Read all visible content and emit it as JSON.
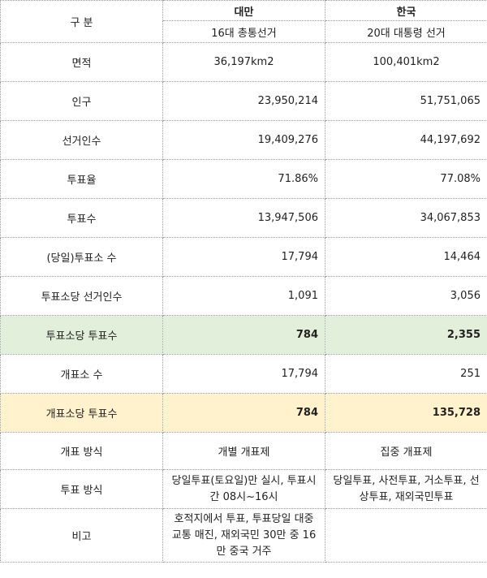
{
  "header": {
    "label": "구 분",
    "col1": {
      "country": "대만",
      "election": "16대 총통선거"
    },
    "col2": {
      "country": "한국",
      "election": "20대 대통령 선거"
    }
  },
  "rows": [
    {
      "label": "면적",
      "taiwan": "36,197km2",
      "korea": "100,401km2"
    },
    {
      "label": "인구",
      "taiwan": "23,950,214",
      "korea": "51,751,065"
    },
    {
      "label": "선거인수",
      "taiwan": "19,409,276",
      "korea": "44,197,692"
    },
    {
      "label": "투표율",
      "taiwan": "71.86%",
      "korea": "77.08%"
    },
    {
      "label": "투표수",
      "taiwan": "13,947,506",
      "korea": "34,067,853"
    },
    {
      "label": "(당일)투표소 수",
      "taiwan": "17,794",
      "korea": "14,464"
    },
    {
      "label": "투표소당 선거인수",
      "taiwan": "1,091",
      "korea": "3,056"
    },
    {
      "label": "투표소당 투표수",
      "taiwan": "784",
      "korea": "2,355"
    },
    {
      "label": "개표소 수",
      "taiwan": "17,794",
      "korea": "251"
    },
    {
      "label": "개표소당 투표수",
      "taiwan": "784",
      "korea": "135,728"
    },
    {
      "label": "개표 방식",
      "taiwan": "개별 개표제",
      "korea": "집중 개표제"
    },
    {
      "label": "투표 방식",
      "taiwan": "당일투표(토요일)만 실시, 투표시간 08시~16시",
      "korea": "당일투표, 사전투표, 거소투표, 선상투표, 재외국민투표"
    },
    {
      "label": "비고",
      "taiwan": "호적지에서 투표, 투표당일 대중교통 매진, 재외국민 30만 중 16만 중국 거주",
      "korea": ""
    }
  ],
  "colors": {
    "highlight_green": "#e2efda",
    "highlight_yellow": "#fff2cc",
    "border": "#9a9a9a"
  }
}
